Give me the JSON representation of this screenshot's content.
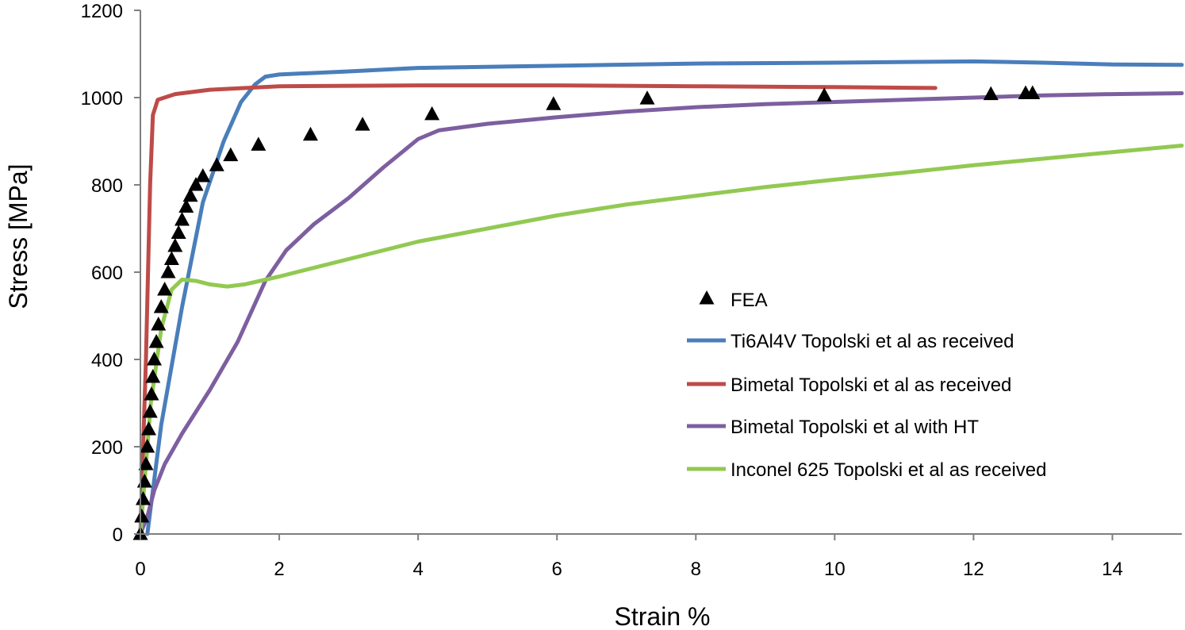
{
  "chart_data": {
    "type": "line",
    "xlabel": "Strain %",
    "ylabel": "Stress [MPa]",
    "xlim": [
      0,
      15
    ],
    "ylim": [
      0,
      1200
    ],
    "x_ticks": [
      0,
      2,
      4,
      6,
      8,
      10,
      12,
      14
    ],
    "y_ticks": [
      0,
      200,
      400,
      600,
      800,
      1000,
      1200
    ],
    "grid": false,
    "legend_position": "center-right",
    "series": [
      {
        "name": "FEA",
        "kind": "scatter",
        "marker": "triangle",
        "color": "#000000",
        "points": [
          [
            0.0,
            0
          ],
          [
            0.02,
            40
          ],
          [
            0.04,
            80
          ],
          [
            0.06,
            120
          ],
          [
            0.08,
            160
          ],
          [
            0.1,
            200
          ],
          [
            0.12,
            240
          ],
          [
            0.14,
            280
          ],
          [
            0.16,
            320
          ],
          [
            0.18,
            360
          ],
          [
            0.2,
            400
          ],
          [
            0.23,
            440
          ],
          [
            0.26,
            480
          ],
          [
            0.3,
            520
          ],
          [
            0.35,
            560
          ],
          [
            0.4,
            600
          ],
          [
            0.45,
            630
          ],
          [
            0.5,
            660
          ],
          [
            0.55,
            690
          ],
          [
            0.6,
            720
          ],
          [
            0.66,
            750
          ],
          [
            0.72,
            775
          ],
          [
            0.8,
            800
          ],
          [
            0.9,
            820
          ],
          [
            1.1,
            845
          ],
          [
            1.3,
            868
          ],
          [
            1.7,
            892
          ],
          [
            2.45,
            915
          ],
          [
            3.2,
            938
          ],
          [
            4.2,
            962
          ],
          [
            5.95,
            985
          ],
          [
            7.3,
            998
          ],
          [
            9.85,
            1005
          ],
          [
            12.25,
            1008
          ],
          [
            12.75,
            1010
          ],
          [
            12.85,
            1010
          ]
        ]
      },
      {
        "name": "Ti6Al4V Topolski et al as received",
        "color": "#4a7ebb",
        "points": [
          [
            0.1,
            0
          ],
          [
            0.3,
            250
          ],
          [
            0.6,
            520
          ],
          [
            0.9,
            760
          ],
          [
            1.2,
            900
          ],
          [
            1.45,
            990
          ],
          [
            1.65,
            1030
          ],
          [
            1.8,
            1048
          ],
          [
            2.0,
            1053
          ],
          [
            3.0,
            1060
          ],
          [
            4.0,
            1068
          ],
          [
            6.0,
            1073
          ],
          [
            8.0,
            1078
          ],
          [
            10.0,
            1080
          ],
          [
            12.0,
            1083
          ],
          [
            13.0,
            1080
          ],
          [
            14.0,
            1076
          ],
          [
            15.0,
            1075
          ]
        ]
      },
      {
        "name": "Bimetal Topolski et al as received",
        "color": "#be4b48",
        "points": [
          [
            0.0,
            0
          ],
          [
            0.08,
            400
          ],
          [
            0.14,
            800
          ],
          [
            0.18,
            960
          ],
          [
            0.25,
            995
          ],
          [
            0.5,
            1008
          ],
          [
            1.0,
            1018
          ],
          [
            2.0,
            1026
          ],
          [
            4.0,
            1028
          ],
          [
            6.0,
            1028
          ],
          [
            8.0,
            1026
          ],
          [
            10.0,
            1024
          ],
          [
            11.45,
            1022
          ]
        ]
      },
      {
        "name": "Bimetal Topolski et al with HT",
        "color": "#7d5fa0",
        "points": [
          [
            0.0,
            0
          ],
          [
            0.1,
            40
          ],
          [
            0.2,
            100
          ],
          [
            0.35,
            160
          ],
          [
            0.6,
            230
          ],
          [
            1.0,
            330
          ],
          [
            1.4,
            440
          ],
          [
            1.6,
            510
          ],
          [
            1.8,
            580
          ],
          [
            2.1,
            650
          ],
          [
            2.5,
            710
          ],
          [
            3.0,
            770
          ],
          [
            3.5,
            840
          ],
          [
            4.0,
            905
          ],
          [
            4.3,
            925
          ],
          [
            5.0,
            940
          ],
          [
            6.0,
            955
          ],
          [
            7.0,
            968
          ],
          [
            8.0,
            978
          ],
          [
            9.0,
            985
          ],
          [
            10.0,
            990
          ],
          [
            12.0,
            1000
          ],
          [
            13.0,
            1005
          ],
          [
            14.0,
            1008
          ],
          [
            15.0,
            1010
          ]
        ]
      },
      {
        "name": "Inconel 625 Topolski et al as received",
        "color": "#92c952",
        "points": [
          [
            0.0,
            0
          ],
          [
            0.15,
            300
          ],
          [
            0.3,
            470
          ],
          [
            0.45,
            560
          ],
          [
            0.6,
            583
          ],
          [
            0.8,
            580
          ],
          [
            1.0,
            572
          ],
          [
            1.25,
            567
          ],
          [
            1.5,
            572
          ],
          [
            2.0,
            590
          ],
          [
            3.0,
            630
          ],
          [
            4.0,
            670
          ],
          [
            5.0,
            700
          ],
          [
            6.0,
            730
          ],
          [
            7.0,
            755
          ],
          [
            8.0,
            775
          ],
          [
            9.0,
            795
          ],
          [
            10.0,
            812
          ],
          [
            11.0,
            828
          ],
          [
            12.0,
            845
          ],
          [
            13.0,
            860
          ],
          [
            14.0,
            875
          ],
          [
            15.0,
            890
          ]
        ]
      }
    ]
  }
}
